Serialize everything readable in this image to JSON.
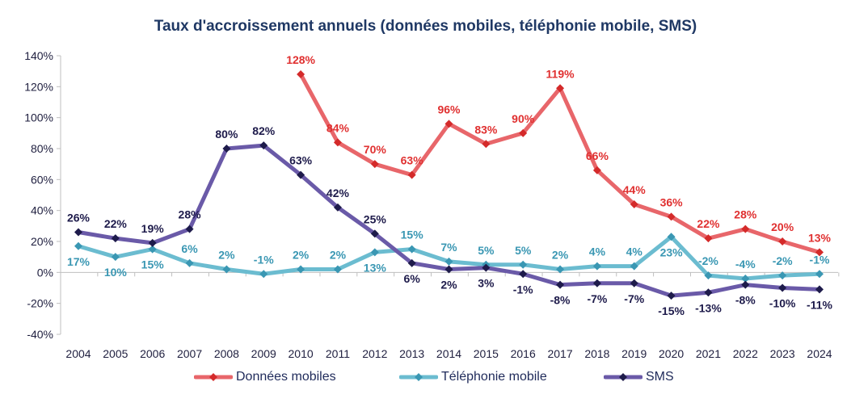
{
  "chart_data": {
    "type": "line",
    "title": "Taux d'accroissement annuels (données mobiles, téléphonie mobile, SMS)",
    "xlabel": "",
    "ylabel": "",
    "categories": [
      "2004",
      "2005",
      "2006",
      "2007",
      "2008",
      "2009",
      "2010",
      "2011",
      "2012",
      "2013",
      "2014",
      "2015",
      "2016",
      "2017",
      "2018",
      "2019",
      "2020",
      "2021",
      "2022",
      "2023",
      "2024"
    ],
    "ylim": [
      -40,
      140
    ],
    "yticks": [
      "-40%",
      "-20%",
      "0%",
      "20%",
      "40%",
      "60%",
      "80%",
      "100%",
      "120%",
      "140%"
    ],
    "grid": false,
    "legend_position": "bottom",
    "series": [
      {
        "name": "Données mobiles",
        "color": "#e8666a",
        "marker_color": "#d42a2a",
        "label_color": "#e03030",
        "values": [
          null,
          null,
          null,
          null,
          null,
          null,
          128,
          84,
          70,
          63,
          96,
          83,
          90,
          119,
          66,
          44,
          36,
          22,
          28,
          20,
          13
        ]
      },
      {
        "name": "Téléphonie mobile",
        "color": "#6bbcd0",
        "marker_color": "#3a97b3",
        "label_color": "#3a97b3",
        "values": [
          17,
          10,
          15,
          6,
          2,
          -1,
          2,
          2,
          13,
          15,
          7,
          5,
          5,
          2,
          4,
          4,
          23,
          -2,
          -4,
          -2,
          -1
        ]
      },
      {
        "name": "SMS",
        "color": "#6a5aa8",
        "marker_color": "#1e1b4b",
        "label_color": "#1e1b4b",
        "values": [
          26,
          22,
          19,
          28,
          80,
          82,
          63,
          42,
          25,
          6,
          2,
          3,
          -1,
          -8,
          -7,
          -7,
          -15,
          -13,
          -8,
          -10,
          -11
        ]
      }
    ]
  }
}
